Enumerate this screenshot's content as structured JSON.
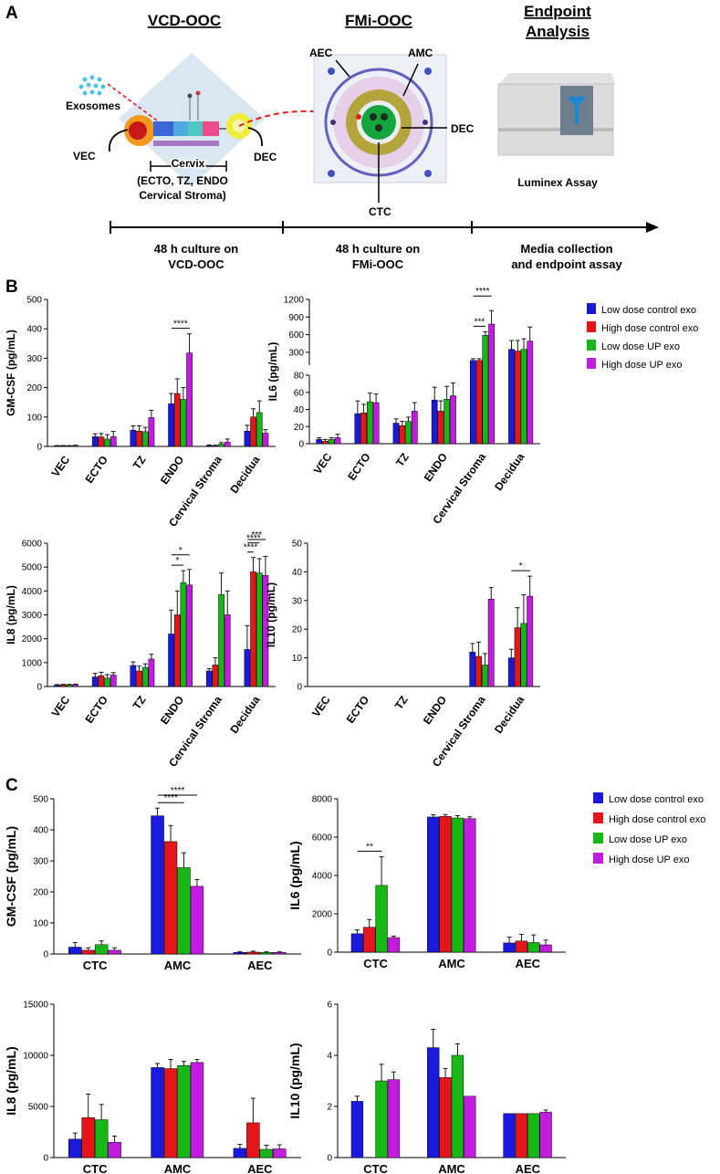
{
  "colors": {
    "low_control": "#1a1adf",
    "high_control": "#e4151b",
    "low_up": "#18b718",
    "high_up": "#c21ce0"
  },
  "legend": [
    "Low dose control exo",
    "High dose control exo",
    "Low dose UP exo",
    "High dose UP exo"
  ],
  "panelA": {
    "letter": "A",
    "headers": {
      "vcd": "VCD-OOC",
      "fmi": "FMi-OOC",
      "endpoint_line1": "Endpoint",
      "endpoint_line2": "Analysis"
    },
    "labels": {
      "exosomes": "Exosomes",
      "vec": "VEC",
      "dec_left": "DEC",
      "cervix": "Cervix",
      "cervix_sub1": "(ECTO, TZ, ENDO",
      "cervix_sub2": "Cervical Stroma)",
      "aec": "AEC",
      "amc": "AMC",
      "dec_right": "DEC",
      "ctc": "CTC",
      "luminex": "Luminex Assay"
    },
    "timeline": [
      {
        "line1": "48 h culture on",
        "line2": "VCD-OOC"
      },
      {
        "line1": "48 h culture on",
        "line2": "FMi-OOC"
      },
      {
        "line1": "Media collection",
        "line2": "and endpoint assay"
      }
    ]
  },
  "panelB": {
    "letter": "B"
  },
  "panelC": {
    "letter": "C"
  },
  "chart_data": [
    {
      "id": "B1",
      "type": "bar",
      "ylabel": "GM-CSF (pg/mL)",
      "ylim": [
        0,
        500
      ],
      "yticks": [
        0,
        100,
        200,
        300,
        400,
        500
      ],
      "categories": [
        "VEC",
        "ECTO",
        "TZ",
        "ENDO",
        "Cervical Stroma",
        "Decidua"
      ],
      "series": [
        {
          "name": "Low dose control exo",
          "values": [
            2,
            33,
            55,
            145,
            3,
            52
          ],
          "errors": [
            1,
            10,
            15,
            35,
            2,
            20
          ]
        },
        {
          "name": "High dose control exo",
          "values": [
            2,
            32,
            52,
            180,
            2,
            100
          ],
          "errors": [
            1,
            12,
            18,
            50,
            2,
            28
          ]
        },
        {
          "name": "Low dose UP exo",
          "values": [
            2,
            25,
            50,
            160,
            8,
            115
          ],
          "errors": [
            1,
            15,
            15,
            40,
            5,
            40
          ]
        },
        {
          "name": "High dose UP exo",
          "values": [
            3,
            33,
            98,
            318,
            15,
            45
          ],
          "errors": [
            1,
            18,
            25,
            65,
            10,
            12
          ]
        }
      ],
      "significance": [
        {
          "cat": 3,
          "from": 0,
          "to": 3,
          "label": "****"
        }
      ]
    },
    {
      "id": "B2",
      "type": "bar",
      "ylabel": "IL6 (pg/mL)",
      "broken_axis": true,
      "lower_range": [
        0,
        80
      ],
      "upper_range": [
        80,
        1200
      ],
      "yticks_lower": [
        0,
        20,
        40,
        60,
        80
      ],
      "yticks_upper": [
        300,
        600,
        900,
        1200
      ],
      "categories": [
        "VEC",
        "ECTO",
        "TZ",
        "ENDO",
        "Cervical Stroma",
        "Decidua"
      ],
      "series": [
        {
          "name": "Low dose control exo",
          "values": [
            5,
            35,
            24,
            51,
            160,
            350
          ],
          "errors": [
            2,
            15,
            5,
            15,
            30,
            150
          ]
        },
        {
          "name": "High dose control exo",
          "values": [
            3,
            36,
            21,
            38,
            160,
            320
          ],
          "errors": [
            2,
            10,
            5,
            12,
            30,
            180
          ]
        },
        {
          "name": "Low dose UP exo",
          "values": [
            5,
            49,
            26,
            52,
            590,
            350
          ],
          "errors": [
            2,
            10,
            5,
            15,
            60,
            180
          ]
        },
        {
          "name": "High dose UP exo",
          "values": [
            7,
            48,
            38,
            56,
            780,
            490
          ],
          "errors": [
            4,
            10,
            10,
            15,
            230,
            240
          ]
        }
      ],
      "significance": [
        {
          "cat": 4,
          "from": 0,
          "to": 2,
          "label": "***"
        },
        {
          "cat": 4,
          "from": 0,
          "to": 3,
          "label": "****"
        }
      ]
    },
    {
      "id": "B3",
      "type": "bar",
      "ylabel": "IL8 (pg/mL)",
      "ylim": [
        0,
        6000
      ],
      "yticks": [
        0,
        1000,
        2000,
        3000,
        4000,
        5000,
        6000
      ],
      "categories": [
        "VEC",
        "ECTO",
        "TZ",
        "ENDO",
        "Cervical Stroma",
        "Decidua"
      ],
      "series": [
        {
          "name": "Low dose control exo",
          "values": [
            60,
            400,
            880,
            2200,
            650,
            1550
          ],
          "errors": [
            20,
            150,
            150,
            1000,
            100,
            1000
          ]
        },
        {
          "name": "High dose control exo",
          "values": [
            70,
            450,
            650,
            3000,
            900,
            4800
          ],
          "errors": [
            20,
            150,
            200,
            1000,
            300,
            600
          ]
        },
        {
          "name": "Low dose UP exo",
          "values": [
            70,
            350,
            800,
            4350,
            3850,
            4750
          ],
          "errors": [
            20,
            150,
            150,
            500,
            900,
            600
          ]
        },
        {
          "name": "High dose UP exo",
          "values": [
            80,
            480,
            1150,
            4250,
            3000,
            4650
          ],
          "errors": [
            20,
            100,
            200,
            650,
            1000,
            800
          ]
        }
      ],
      "significance": [
        {
          "cat": 3,
          "from": 0,
          "to": 2,
          "label": "*"
        },
        {
          "cat": 3,
          "from": 0,
          "to": 3,
          "label": "*"
        },
        {
          "cat": 5,
          "from": 0,
          "to": 1,
          "label": "****"
        },
        {
          "cat": 5,
          "from": 0,
          "to": 2,
          "label": "****"
        },
        {
          "cat": 5,
          "from": 0,
          "to": 3,
          "label": "***"
        }
      ]
    },
    {
      "id": "B4",
      "type": "bar",
      "ylabel": "IL10 (pg/mL)",
      "ylim": [
        0,
        50
      ],
      "yticks": [
        0,
        10,
        20,
        30,
        40,
        50
      ],
      "categories": [
        "VEC",
        "ECTO",
        "TZ",
        "ENDO",
        "Cervical Stroma",
        "Decidua"
      ],
      "series": [
        {
          "name": "Low dose control exo",
          "values": [
            0,
            0,
            0,
            0,
            12,
            10
          ],
          "errors": [
            0,
            0,
            0,
            0,
            3,
            3
          ]
        },
        {
          "name": "High dose control exo",
          "values": [
            0,
            0,
            0,
            0,
            10.5,
            20.5
          ],
          "errors": [
            0,
            0,
            0,
            0,
            5,
            7
          ]
        },
        {
          "name": "Low dose UP exo",
          "values": [
            0,
            0,
            0,
            0,
            7.5,
            22
          ],
          "errors": [
            0,
            0,
            0,
            0,
            4,
            10
          ]
        },
        {
          "name": "High dose UP exo",
          "values": [
            0,
            0,
            0,
            0,
            30.5,
            31.5
          ],
          "errors": [
            0,
            0,
            0,
            0,
            4,
            7
          ]
        }
      ],
      "significance": [
        {
          "cat": 5,
          "from": 0,
          "to": 3,
          "label": "*"
        }
      ]
    },
    {
      "id": "C1",
      "type": "bar",
      "ylabel": "GM-CSF (pg/mL)",
      "ylim": [
        0,
        500
      ],
      "yticks": [
        0,
        100,
        200,
        300,
        400,
        500
      ],
      "categories": [
        "CTC",
        "AMC",
        "AEC"
      ],
      "series": [
        {
          "name": "Low dose control exo",
          "values": [
            22,
            445,
            5
          ],
          "errors": [
            15,
            25,
            2
          ]
        },
        {
          "name": "High dose control exo",
          "values": [
            12,
            362,
            6
          ],
          "errors": [
            8,
            52,
            3
          ]
        },
        {
          "name": "Low dose UP exo",
          "values": [
            30,
            278,
            5
          ],
          "errors": [
            12,
            48,
            2
          ]
        },
        {
          "name": "High dose UP exo",
          "values": [
            12,
            218,
            5
          ],
          "errors": [
            8,
            22,
            2
          ]
        }
      ],
      "significance": [
        {
          "cat": 1,
          "from": 0,
          "to": 2,
          "label": "****"
        },
        {
          "cat": 1,
          "from": 0,
          "to": 3,
          "label": "****"
        }
      ]
    },
    {
      "id": "C2",
      "type": "bar",
      "ylabel": "IL6 (pg/mL)",
      "ylim": [
        0,
        8000
      ],
      "yticks": [
        0,
        2000,
        4000,
        6000,
        8000
      ],
      "categories": [
        "CTC",
        "AMC",
        "AEC"
      ],
      "series": [
        {
          "name": "Low dose control exo",
          "values": [
            960,
            7050,
            480
          ],
          "errors": [
            200,
            120,
            300
          ]
        },
        {
          "name": "High dose control exo",
          "values": [
            1300,
            7080,
            580
          ],
          "errors": [
            400,
            100,
            350
          ]
        },
        {
          "name": "Low dose UP exo",
          "values": [
            3480,
            7000,
            500
          ],
          "errors": [
            1500,
            120,
            400
          ]
        },
        {
          "name": "High dose UP exo",
          "values": [
            760,
            6960,
            380
          ],
          "errors": [
            80,
            100,
            250
          ]
        }
      ],
      "significance": [
        {
          "cat": 0,
          "from": 0,
          "to": 2,
          "label": "**"
        }
      ]
    },
    {
      "id": "C3",
      "type": "bar",
      "ylabel": "IL8 (pg/mL)",
      "ylim": [
        0,
        15000
      ],
      "yticks": [
        0,
        5000,
        10000,
        15000
      ],
      "categories": [
        "CTC",
        "AMC",
        "AEC"
      ],
      "series": [
        {
          "name": "Low dose control exo",
          "values": [
            1800,
            8800,
            900
          ],
          "errors": [
            600,
            400,
            400
          ]
        },
        {
          "name": "High dose control exo",
          "values": [
            3900,
            8700,
            3400
          ],
          "errors": [
            2300,
            900,
            2400
          ]
        },
        {
          "name": "Low dose UP exo",
          "values": [
            3700,
            9000,
            800
          ],
          "errors": [
            1500,
            400,
            400
          ]
        },
        {
          "name": "High dose UP exo",
          "values": [
            1500,
            9300,
            850
          ],
          "errors": [
            600,
            300,
            400
          ]
        }
      ],
      "significance": []
    },
    {
      "id": "C4",
      "type": "bar",
      "ylabel": "IL10 (pg/mL)",
      "ylim": [
        0,
        6
      ],
      "yticks": [
        0,
        2,
        4,
        6
      ],
      "categories": [
        "CTC",
        "AMC",
        "AEC"
      ],
      "series": [
        {
          "name": "Low dose control exo",
          "values": [
            2.2,
            4.3,
            1.72
          ],
          "errors": [
            0.2,
            0.72,
            0
          ]
        },
        {
          "name": "High dose control exo",
          "values": [
            0,
            3.13,
            1.72
          ],
          "errors": [
            0,
            0.35,
            0
          ]
        },
        {
          "name": "Low dose UP exo",
          "values": [
            3.0,
            4.0,
            1.72
          ],
          "errors": [
            0.65,
            0.45,
            0
          ]
        },
        {
          "name": "High dose UP exo",
          "values": [
            3.05,
            2.4,
            1.78
          ],
          "errors": [
            0.3,
            0,
            0.08
          ]
        }
      ],
      "significance": []
    }
  ]
}
